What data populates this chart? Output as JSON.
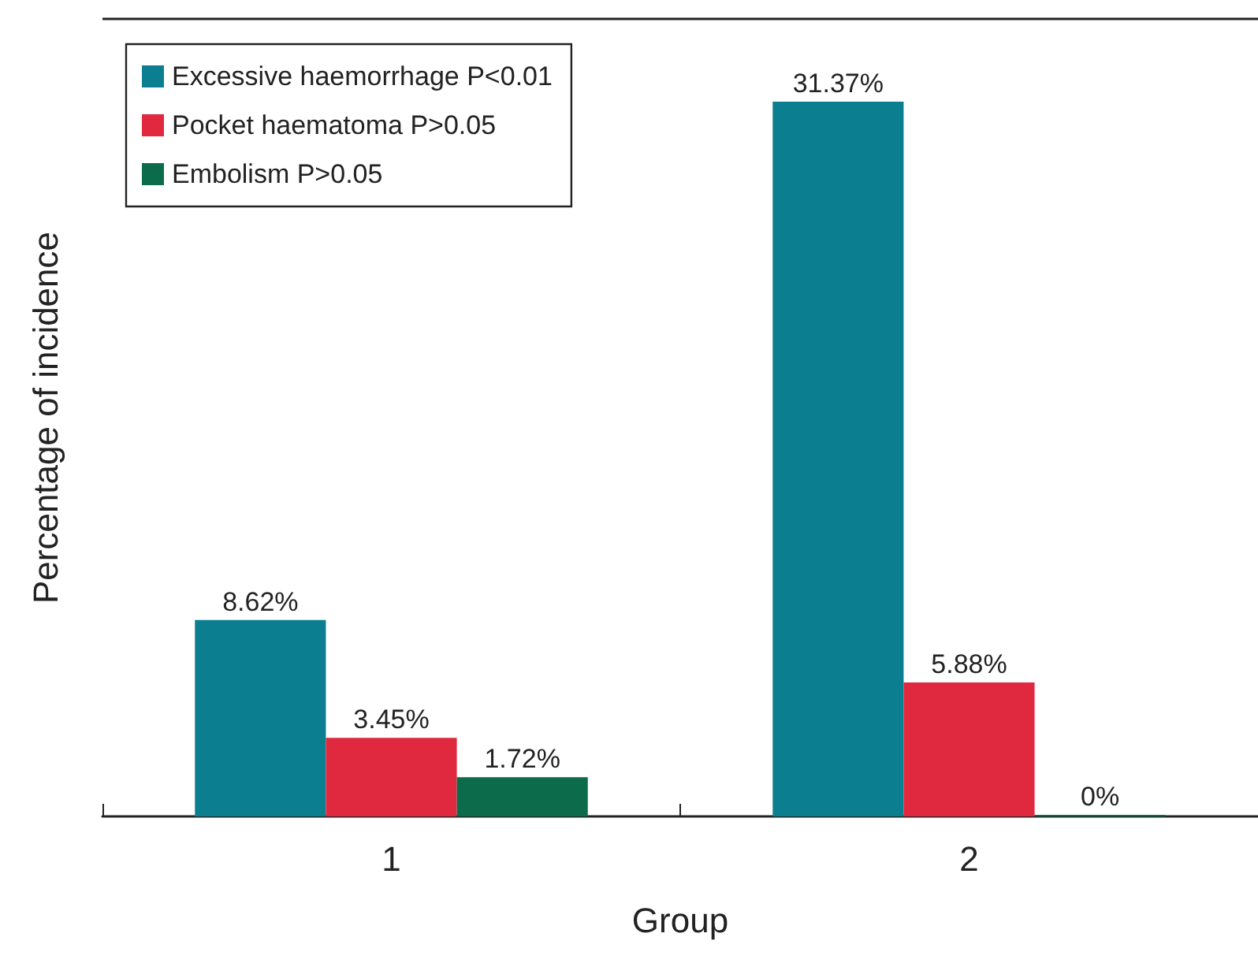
{
  "chart_data": {
    "type": "bar",
    "xlabel": "Group",
    "ylabel": "Percentage of incidence",
    "categories": [
      "1",
      "2"
    ],
    "series": [
      {
        "name": "Excessive haemorrhage P<0.01",
        "color": "#0b7f8f",
        "values": [
          8.62,
          31.37
        ],
        "value_labels": [
          "8.62%",
          "31.37%"
        ]
      },
      {
        "name": "Pocket haematoma P>0.05",
        "color": "#e0283f",
        "values": [
          3.45,
          5.88
        ],
        "value_labels": [
          "3.45%",
          "5.88%"
        ]
      },
      {
        "name": "Embolism P>0.05",
        "color": "#0b6b4a",
        "values": [
          1.72,
          0
        ],
        "value_labels": [
          "1.72%",
          "0%"
        ]
      }
    ],
    "legend": "top left",
    "grid": false,
    "tick_labels": "x"
  }
}
